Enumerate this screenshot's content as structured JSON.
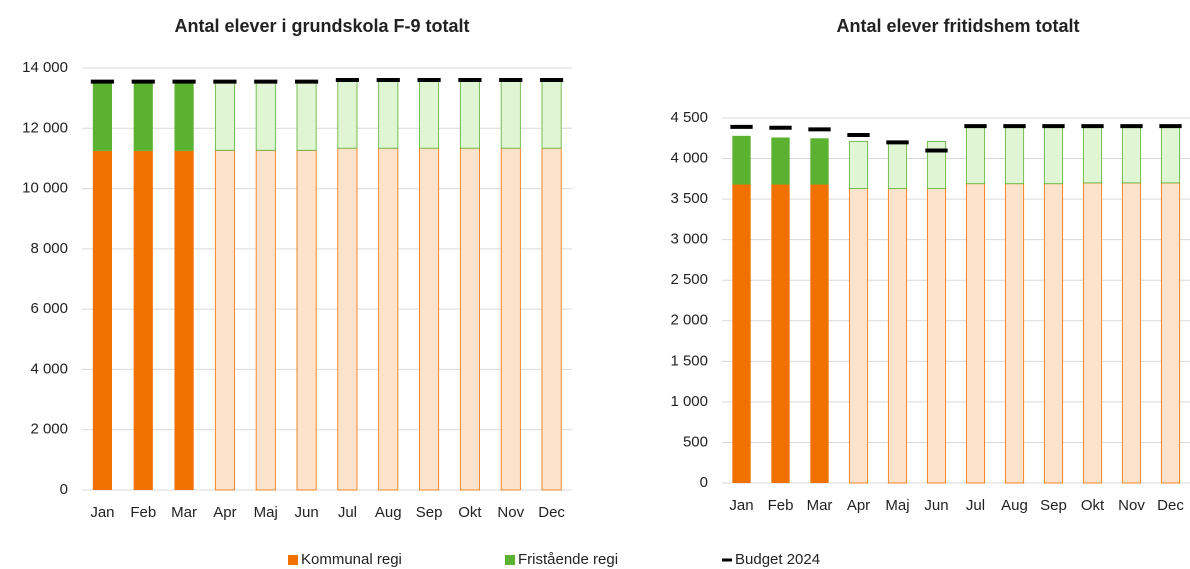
{
  "chart_data": [
    {
      "type": "stacked_bar",
      "title": "Antal elever i grundskola F-9  totalt",
      "categories": [
        "Jan",
        "Feb",
        "Mar",
        "Apr",
        "Maj",
        "Jun",
        "Jul",
        "Aug",
        "Sep",
        "Okt",
        "Nov",
        "Dec"
      ],
      "forecast_start": "Apr",
      "series": [
        {
          "name": "Kommunal regi",
          "color": "#f07000",
          "forecast_color": "#fde3cc",
          "values": [
            11250,
            11250,
            11250,
            11270,
            11270,
            11270,
            11340,
            11340,
            11340,
            11340,
            11340,
            11340
          ]
        },
        {
          "name": "Fristående regi",
          "color": "#5bb130",
          "forecast_color": "#dff5d3",
          "values": [
            2250,
            2250,
            2250,
            2230,
            2230,
            2230,
            2210,
            2210,
            2210,
            2210,
            2210,
            2210
          ]
        },
        {
          "name": "Budget 2024",
          "type": "marker",
          "color": "#000000",
          "values": [
            13550,
            13550,
            13550,
            13550,
            13550,
            13550,
            13600,
            13600,
            13600,
            13600,
            13600,
            13600
          ]
        }
      ],
      "ylim": [
        0,
        14000
      ],
      "yticks": [
        0,
        {
          "value": 2000,
          "label": "2 000"
        },
        {
          "value": 4000,
          "label": "4 000"
        },
        {
          "value": 6000,
          "label": "6 000"
        },
        {
          "value": 8000,
          "label": "8 000"
        },
        {
          "value": 10000,
          "label": "10 000"
        },
        {
          "value": 12000,
          "label": "12 000"
        },
        {
          "value": 14000,
          "label": "14 000"
        }
      ],
      "grid": true
    },
    {
      "type": "stacked_bar",
      "title": "Antal elever fritidshem totalt",
      "categories": [
        "Jan",
        "Feb",
        "Mar",
        "Apr",
        "Maj",
        "Jun",
        "Jul",
        "Aug",
        "Sep",
        "Okt",
        "Nov",
        "Dec"
      ],
      "forecast_start": "Apr",
      "series": [
        {
          "name": "Kommunal regi",
          "color": "#f07000",
          "forecast_color": "#fde3cc",
          "values": [
            3680,
            3680,
            3680,
            3630,
            3630,
            3630,
            3690,
            3690,
            3690,
            3700,
            3700,
            3700
          ]
        },
        {
          "name": "Fristående regi",
          "color": "#5bb130",
          "forecast_color": "#dff5d3",
          "values": [
            600,
            580,
            570,
            580,
            580,
            580,
            700,
            700,
            700,
            690,
            690,
            690
          ]
        },
        {
          "name": "Budget 2024",
          "type": "marker",
          "color": "#000000",
          "values": [
            4390,
            4380,
            4360,
            4290,
            4200,
            4100,
            4400,
            4400,
            4400,
            4400,
            4400,
            4400
          ]
        }
      ],
      "ylim": [
        0,
        4500
      ],
      "yticks": [
        0,
        500,
        {
          "value": 1000,
          "label": "1 000"
        },
        {
          "value": 1500,
          "label": "1 500"
        },
        {
          "value": 2000,
          "label": "2 000"
        },
        {
          "value": 2500,
          "label": "2 500"
        },
        {
          "value": 3000,
          "label": "3 000"
        },
        {
          "value": 3500,
          "label": "3 500"
        },
        {
          "value": 4000,
          "label": "4 000"
        },
        {
          "value": 4500,
          "label": "4 500"
        }
      ],
      "grid": true
    }
  ]
}
